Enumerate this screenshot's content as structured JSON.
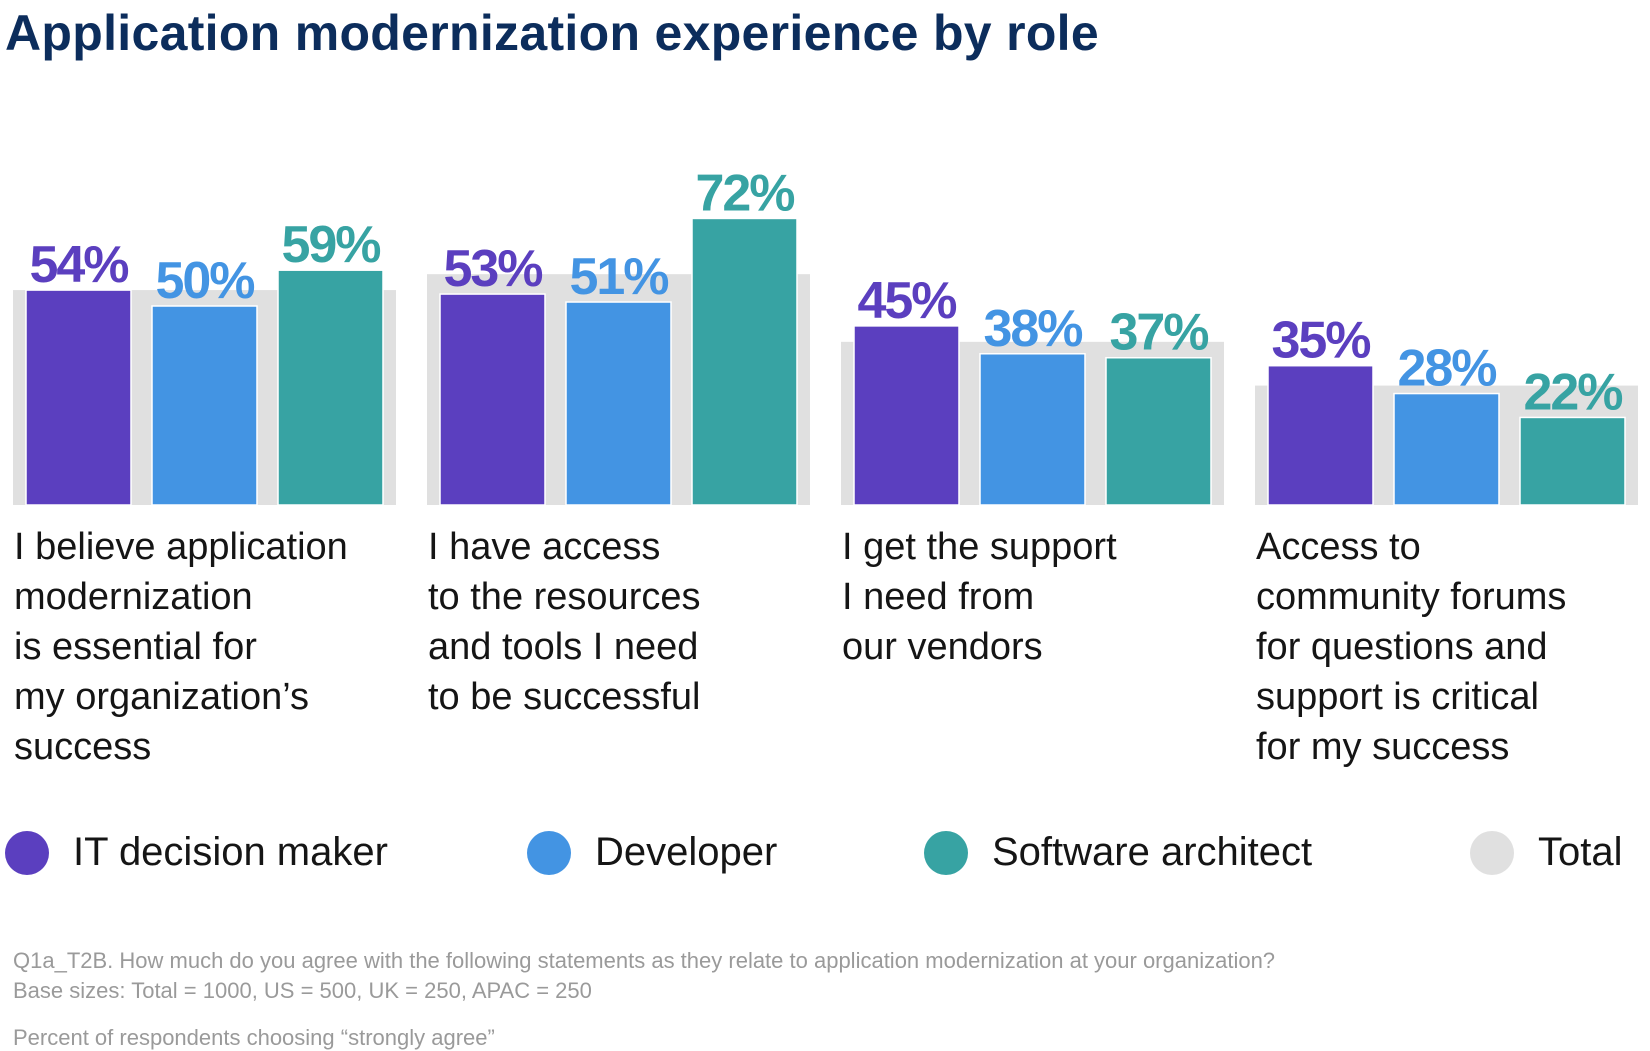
{
  "chart_data": {
    "type": "bar",
    "title": "Application modernization experience by role",
    "categories": [
      "I believe application\nmodernization\nis essential for\nmy organization’s\nsuccess",
      "I have access\nto the resources\nand tools I need\nto be successful",
      "I get the support\nI need from\nour vendors",
      "Access to\ncommunity forums\nfor questions and\nsupport is critical\nfor my success"
    ],
    "series": [
      {
        "name": "IT decision maker",
        "color": "#5b3fbf",
        "values": [
          54,
          53,
          45,
          35
        ],
        "labels": [
          "54%",
          "53%",
          "45%",
          "35%"
        ]
      },
      {
        "name": "Developer",
        "color": "#4394e3",
        "values": [
          50,
          51,
          38,
          28
        ],
        "labels": [
          "50%",
          "51%",
          "38%",
          "28%"
        ]
      },
      {
        "name": "Software architect",
        "color": "#37a3a3",
        "values": [
          59,
          72,
          37,
          22
        ],
        "labels": [
          "59%",
          "72%",
          "37%",
          "22%"
        ]
      },
      {
        "name": "Total",
        "color": "#e0e0e0",
        "values": [
          54,
          58,
          41,
          30
        ]
      }
    ],
    "ylim": [
      0,
      100
    ],
    "grid": false,
    "legend": "bottom"
  },
  "footnotes": {
    "question": "Q1a_T2B. How much do you agree with the following statements as they relate to application modernization at your organization?",
    "base": "Base sizes: Total = 1000, US = 500, UK = 250, APAC = 250",
    "measure": "Percent of respondents choosing “strongly agree”"
  }
}
